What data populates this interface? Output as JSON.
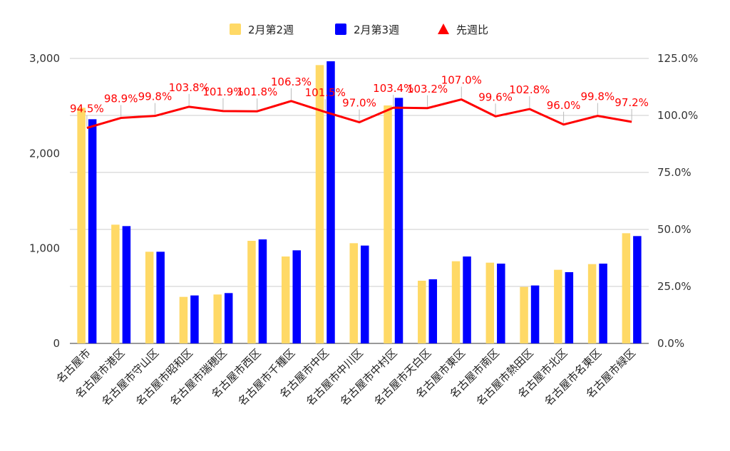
{
  "chart_data": {
    "type": "bar",
    "categories": [
      "名古屋市",
      "名古屋市港区",
      "名古屋市守山区",
      "名古屋市昭和区",
      "名古屋市瑞穂区",
      "名古屋市西区",
      "名古屋市千種区",
      "名古屋市中区",
      "名古屋市中川区",
      "名古屋市中村区",
      "名古屋市天白区",
      "名古屋市東区",
      "名古屋市南区",
      "名古屋市熱田区",
      "名古屋市北区",
      "名古屋市名東区",
      "名古屋市緑区"
    ],
    "series": [
      {
        "name": "2月第2週",
        "type": "bar",
        "axis": "left",
        "color": "#ffd966",
        "values": [
          2480,
          1250,
          965,
          490,
          515,
          1080,
          915,
          2930,
          1055,
          2505,
          660,
          865,
          850,
          595,
          775,
          835,
          1160
        ]
      },
      {
        "name": "2月第3週",
        "type": "bar",
        "axis": "left",
        "color": "#0000ff",
        "values": [
          2360,
          1235,
          965,
          505,
          530,
          1095,
          980,
          2970,
          1030,
          2585,
          675,
          915,
          840,
          610,
          750,
          840,
          1130
        ]
      },
      {
        "name": "先週比",
        "type": "line",
        "axis": "right",
        "color": "#ff0000",
        "values": [
          94.5,
          98.9,
          99.8,
          103.8,
          101.9,
          101.8,
          106.3,
          101.5,
          97.0,
          103.4,
          103.2,
          107.0,
          99.6,
          102.8,
          96.0,
          99.8,
          97.2
        ],
        "labels": [
          "94.5%",
          "98.9%",
          "99.8%",
          "103.8%",
          "101.9%",
          "101.8%",
          "106.3%",
          "101.5%",
          "97.0%",
          "103.4%",
          "103.2%",
          "107.0%",
          "99.6%",
          "102.8%",
          "96.0%",
          "99.8%",
          "97.2%"
        ]
      }
    ],
    "y_left": {
      "ylim": [
        0,
        3000
      ],
      "ticks": [
        0,
        1000,
        2000,
        3000
      ],
      "tick_labels": [
        "0",
        "1,000",
        "2,000",
        "3,000"
      ]
    },
    "y_right": {
      "ylim": [
        0,
        125
      ],
      "ticks": [
        0,
        25,
        50,
        75,
        100,
        125
      ],
      "tick_labels": [
        "0.0%",
        "25.0%",
        "50.0%",
        "75.0%",
        "100.0%",
        "125.0%"
      ]
    },
    "title": "",
    "xlabel": "",
    "ylabel": "",
    "grid": true,
    "legend": "top-center"
  }
}
